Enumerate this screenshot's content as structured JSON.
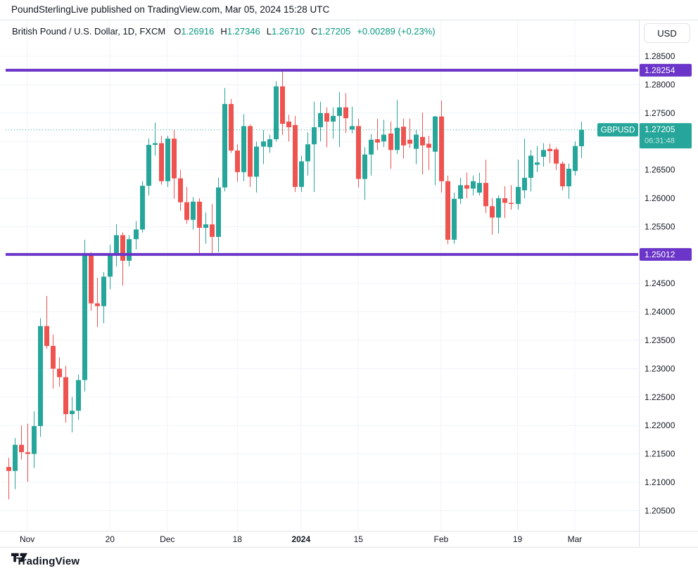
{
  "publisher_bar": {
    "text": "PoundSterlingLive published on TradingView.com, Mar 05, 2024 15:28 UTC"
  },
  "header": {
    "symbol_title": "British Pound / U.S. Dollar, 1D, FXCM",
    "open_label": "O",
    "open_value": "1.26916",
    "high_label": "H",
    "high_value": "1.27346",
    "low_label": "L",
    "low_value": "1.26710",
    "close_label": "C",
    "close_value": "1.27205",
    "change_text": "+0.00289 (+0.23%)"
  },
  "price_axis": {
    "currency_button": "USD",
    "ticks": [
      "1.28500",
      "1.28000",
      "1.27500",
      "1.26500",
      "1.26000",
      "1.25500",
      "1.24500",
      "1.24000",
      "1.23500",
      "1.23000",
      "1.22500",
      "1.22000",
      "1.21500",
      "1.21000",
      "1.20500"
    ]
  },
  "price_tag": {
    "symbol": "GBPUSD",
    "price": "1.27205",
    "countdown": "06:31:48"
  },
  "level_tags": [
    "1.28254",
    "1.25012"
  ],
  "footer": {
    "logo_text": "TradingView"
  },
  "colors": {
    "up": "#26a69a",
    "down": "#ef5350",
    "header_value": "#089981",
    "level_purple": "#6a35c8",
    "text": "#131722",
    "grid": "#f0f3fa",
    "axis_border": "#e0e3eb"
  },
  "chart_data": {
    "type": "candlestick",
    "symbol": "GBPUSD",
    "description": "British Pound / U.S. Dollar",
    "interval": "1D",
    "exchange": "FXCM",
    "current_price": 1.27205,
    "horizontal_levels": [
      1.28254,
      1.25012
    ],
    "y_axis_visible_range": [
      1.203,
      1.2885
    ],
    "x_axis_labels": [
      {
        "text": "Nov",
        "index": 3,
        "bold": false
      },
      {
        "text": "20",
        "index": 16,
        "bold": false
      },
      {
        "text": "Dec",
        "index": 25,
        "bold": false
      },
      {
        "text": "18",
        "index": 36,
        "bold": false
      },
      {
        "text": "2024",
        "index": 46,
        "bold": true
      },
      {
        "text": "15",
        "index": 55,
        "bold": false
      },
      {
        "text": "Feb",
        "index": 68,
        "bold": false
      },
      {
        "text": "19",
        "index": 80,
        "bold": false
      },
      {
        "text": "Mar",
        "index": 89,
        "bold": false
      }
    ],
    "columns": [
      "date",
      "open",
      "high",
      "low",
      "close"
    ],
    "candles": [
      [
        "2023-10-27",
        1.2127,
        1.2143,
        1.207,
        1.212
      ],
      [
        "2023-10-30",
        1.212,
        1.2178,
        1.2088,
        1.2166
      ],
      [
        "2023-10-31",
        1.2166,
        1.22,
        1.214,
        1.2153
      ],
      [
        "2023-11-01",
        1.2153,
        1.2203,
        1.2101,
        1.215
      ],
      [
        "2023-11-02",
        1.215,
        1.2225,
        1.2125,
        1.2199
      ],
      [
        "2023-11-03",
        1.2199,
        1.2389,
        1.218,
        1.2375
      ],
      [
        "2023-11-06",
        1.2375,
        1.2428,
        1.2335,
        1.234
      ],
      [
        "2023-11-07",
        1.234,
        1.236,
        1.2265,
        1.23
      ],
      [
        "2023-11-08",
        1.23,
        1.232,
        1.2268,
        1.2285
      ],
      [
        "2023-11-09",
        1.2285,
        1.2305,
        1.2205,
        1.222
      ],
      [
        "2023-11-10",
        1.222,
        1.225,
        1.2188,
        1.2226
      ],
      [
        "2023-11-13",
        1.2226,
        1.229,
        1.221,
        1.228
      ],
      [
        "2023-11-14",
        1.228,
        1.2527,
        1.226,
        1.25
      ],
      [
        "2023-11-15",
        1.25,
        1.2505,
        1.2402,
        1.2415
      ],
      [
        "2023-11-16",
        1.2415,
        1.246,
        1.2373,
        1.241
      ],
      [
        "2023-11-17",
        1.241,
        1.247,
        1.238,
        1.2462
      ],
      [
        "2023-11-20",
        1.2462,
        1.2518,
        1.244,
        1.2503
      ],
      [
        "2023-11-21",
        1.2503,
        1.2554,
        1.248,
        1.2535
      ],
      [
        "2023-11-22",
        1.2535,
        1.254,
        1.2446,
        1.249
      ],
      [
        "2023-11-23",
        1.249,
        1.2535,
        1.248,
        1.2528
      ],
      [
        "2023-11-24",
        1.2528,
        1.256,
        1.251,
        1.2545
      ],
      [
        "2023-11-27",
        1.2545,
        1.263,
        1.254,
        1.2622
      ],
      [
        "2023-11-28",
        1.2622,
        1.2705,
        1.2605,
        1.2694
      ],
      [
        "2023-11-29",
        1.2694,
        1.2733,
        1.2675,
        1.2697
      ],
      [
        "2023-11-30",
        1.2697,
        1.271,
        1.2624,
        1.263
      ],
      [
        "2023-12-01",
        1.263,
        1.271,
        1.262,
        1.2705
      ],
      [
        "2023-12-04",
        1.2705,
        1.272,
        1.2599,
        1.2635
      ],
      [
        "2023-12-05",
        1.2635,
        1.265,
        1.2578,
        1.2593
      ],
      [
        "2023-12-06",
        1.2593,
        1.262,
        1.2555,
        1.2562
      ],
      [
        "2023-12-07",
        1.2562,
        1.2602,
        1.2545,
        1.2594
      ],
      [
        "2023-12-08",
        1.2594,
        1.26,
        1.25,
        1.2548
      ],
      [
        "2023-12-11",
        1.2548,
        1.2575,
        1.252,
        1.2554
      ],
      [
        "2023-12-12",
        1.2554,
        1.259,
        1.25,
        1.2532
      ],
      [
        "2023-12-13",
        1.2532,
        1.2636,
        1.2505,
        1.2619
      ],
      [
        "2023-12-14",
        1.2619,
        1.2794,
        1.2612,
        1.2766
      ],
      [
        "2023-12-15",
        1.2766,
        1.2775,
        1.268,
        1.2684
      ],
      [
        "2023-12-18",
        1.2684,
        1.2695,
        1.2629,
        1.2646
      ],
      [
        "2023-12-19",
        1.2646,
        1.2748,
        1.263,
        1.2727
      ],
      [
        "2023-12-20",
        1.2727,
        1.273,
        1.262,
        1.2638
      ],
      [
        "2023-12-21",
        1.2638,
        1.27,
        1.261,
        1.2691
      ],
      [
        "2023-12-22",
        1.2691,
        1.272,
        1.266,
        1.27
      ],
      [
        "2023-12-26",
        1.269,
        1.2712,
        1.268,
        1.2704
      ],
      [
        "2023-12-27",
        1.2704,
        1.2806,
        1.27,
        1.2797
      ],
      [
        "2023-12-28",
        1.2797,
        1.2825,
        1.2711,
        1.2731
      ],
      [
        "2023-12-29",
        1.2735,
        1.2747,
        1.27,
        1.2725
      ],
      [
        "2024-01-02",
        1.2729,
        1.2745,
        1.2611,
        1.262
      ],
      [
        "2024-01-03",
        1.262,
        1.2675,
        1.2611,
        1.2665
      ],
      [
        "2024-01-04",
        1.2665,
        1.2716,
        1.264,
        1.2695
      ],
      [
        "2024-01-05",
        1.2695,
        1.277,
        1.2611,
        1.2725
      ],
      [
        "2024-01-08",
        1.2725,
        1.277,
        1.27,
        1.275
      ],
      [
        "2024-01-09",
        1.275,
        1.276,
        1.269,
        1.2735
      ],
      [
        "2024-01-10",
        1.2735,
        1.276,
        1.2705,
        1.2745
      ],
      [
        "2024-01-11",
        1.2745,
        1.2787,
        1.269,
        1.276
      ],
      [
        "2024-01-12",
        1.276,
        1.2785,
        1.2715,
        1.2741
      ],
      [
        "2024-01-15",
        1.2721,
        1.2761,
        1.2714,
        1.2727
      ],
      [
        "2024-01-16",
        1.2727,
        1.274,
        1.2619,
        1.2634
      ],
      [
        "2024-01-17",
        1.2634,
        1.269,
        1.2597,
        1.2677
      ],
      [
        "2024-01-18",
        1.2677,
        1.2713,
        1.264,
        1.2703
      ],
      [
        "2024-01-19",
        1.2704,
        1.274,
        1.2685,
        1.2698
      ],
      [
        "2024-01-22",
        1.27,
        1.2738,
        1.269,
        1.2712
      ],
      [
        "2024-01-23",
        1.2714,
        1.2735,
        1.2652,
        1.2685
      ],
      [
        "2024-01-24",
        1.2685,
        1.2773,
        1.2678,
        1.2724
      ],
      [
        "2024-01-25",
        1.2726,
        1.274,
        1.267,
        1.2693
      ],
      [
        "2024-01-26",
        1.2703,
        1.274,
        1.2688,
        1.2696
      ],
      [
        "2024-01-29",
        1.2687,
        1.272,
        1.266,
        1.2712
      ],
      [
        "2024-01-30",
        1.2708,
        1.2751,
        1.2642,
        1.2693
      ],
      [
        "2024-01-31",
        1.2696,
        1.271,
        1.265,
        1.2689
      ],
      [
        "2024-02-01",
        1.2682,
        1.2745,
        1.2623,
        1.2744
      ],
      [
        "2024-02-02",
        1.2744,
        1.2772,
        1.261,
        1.263
      ],
      [
        "2024-02-05",
        1.263,
        1.264,
        1.2519,
        1.2527
      ],
      [
        "2024-02-06",
        1.2527,
        1.261,
        1.252,
        1.2599
      ],
      [
        "2024-02-07",
        1.2599,
        1.2636,
        1.259,
        1.2623
      ],
      [
        "2024-02-08",
        1.2623,
        1.2645,
        1.26,
        1.2617
      ],
      [
        "2024-02-09",
        1.2617,
        1.264,
        1.2605,
        1.263
      ],
      [
        "2024-02-12",
        1.261,
        1.2645,
        1.2605,
        1.2627
      ],
      [
        "2024-02-13",
        1.2627,
        1.2668,
        1.2574,
        1.2586
      ],
      [
        "2024-02-14",
        1.2586,
        1.26,
        1.2536,
        1.2566
      ],
      [
        "2024-02-15",
        1.2566,
        1.2605,
        1.2538,
        1.26
      ],
      [
        "2024-02-16",
        1.26,
        1.2621,
        1.2565,
        1.2592
      ],
      [
        "2024-02-19",
        1.2592,
        1.2623,
        1.258,
        1.259
      ],
      [
        "2024-02-20",
        1.259,
        1.2668,
        1.258,
        1.262
      ],
      [
        "2024-02-21",
        1.2614,
        1.2705,
        1.26,
        1.2636
      ],
      [
        "2024-02-22",
        1.2636,
        1.2685,
        1.2612,
        1.2675
      ],
      [
        "2024-02-23",
        1.2659,
        1.2692,
        1.2646,
        1.2663
      ],
      [
        "2024-02-26",
        1.2673,
        1.2697,
        1.2656,
        1.2685
      ],
      [
        "2024-02-27",
        1.2687,
        1.2696,
        1.2662,
        1.2683
      ],
      [
        "2024-02-28",
        1.2686,
        1.269,
        1.265,
        1.2661
      ],
      [
        "2024-02-29",
        1.2661,
        1.2665,
        1.2614,
        1.2621
      ],
      [
        "2024-03-01",
        1.2621,
        1.2661,
        1.2599,
        1.2652
      ],
      [
        "2024-03-04",
        1.2648,
        1.27,
        1.264,
        1.2692
      ],
      [
        "2024-03-05",
        1.26916,
        1.27346,
        1.2671,
        1.27205
      ]
    ]
  }
}
